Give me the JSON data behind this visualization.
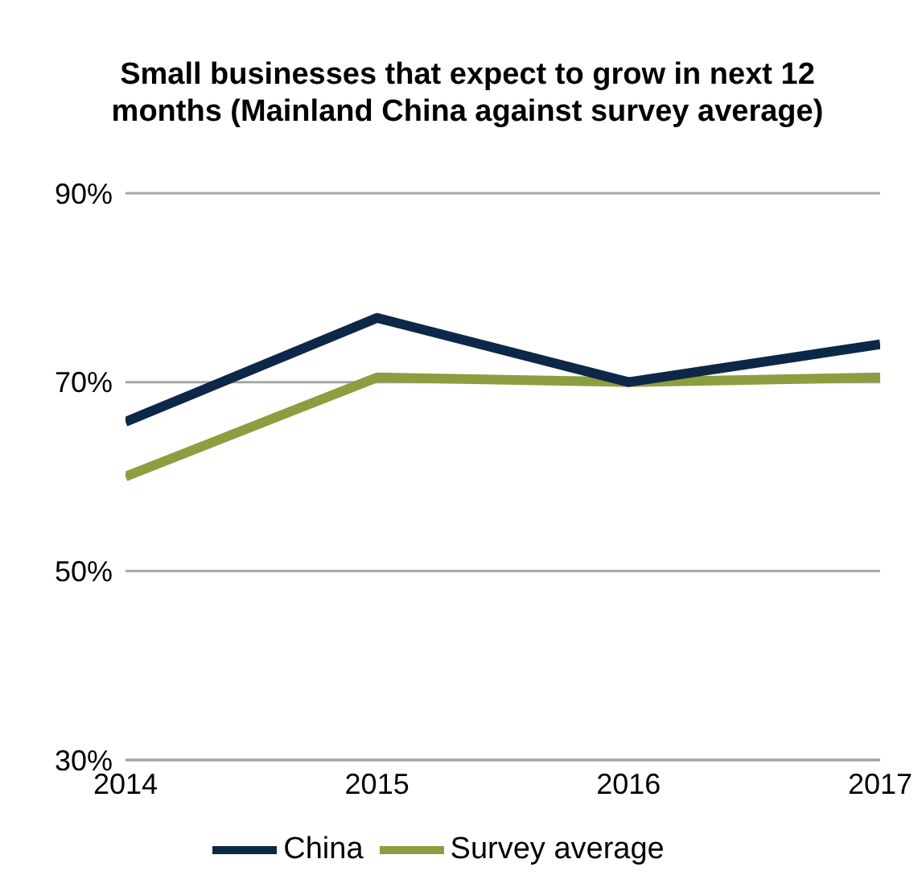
{
  "chart_data": {
    "type": "line",
    "title": "Small businesses that expect to grow in next 12 months (Mainland China against survey average)",
    "x": [
      2014,
      2015,
      2016,
      2017
    ],
    "series": [
      {
        "name": "Survey average",
        "color": "#8c9e3f",
        "values": [
          60,
          70.5,
          70,
          70.5
        ]
      },
      {
        "name": "China",
        "color": "#0d2748",
        "values": [
          65.8,
          76.8,
          70,
          74
        ]
      }
    ],
    "xlim": [
      2014,
      2017
    ],
    "xticks": [
      2014,
      2015,
      2016,
      2017
    ],
    "ylim": [
      30,
      90
    ],
    "yticks": [
      {
        "value": 30,
        "label": "30%"
      },
      {
        "value": 50,
        "label": "50%"
      },
      {
        "value": 70,
        "label": "70%"
      },
      {
        "value": 90,
        "label": "90%"
      }
    ],
    "grid": "y",
    "legend": "bottom",
    "marker": "none",
    "line_style": "solid"
  }
}
